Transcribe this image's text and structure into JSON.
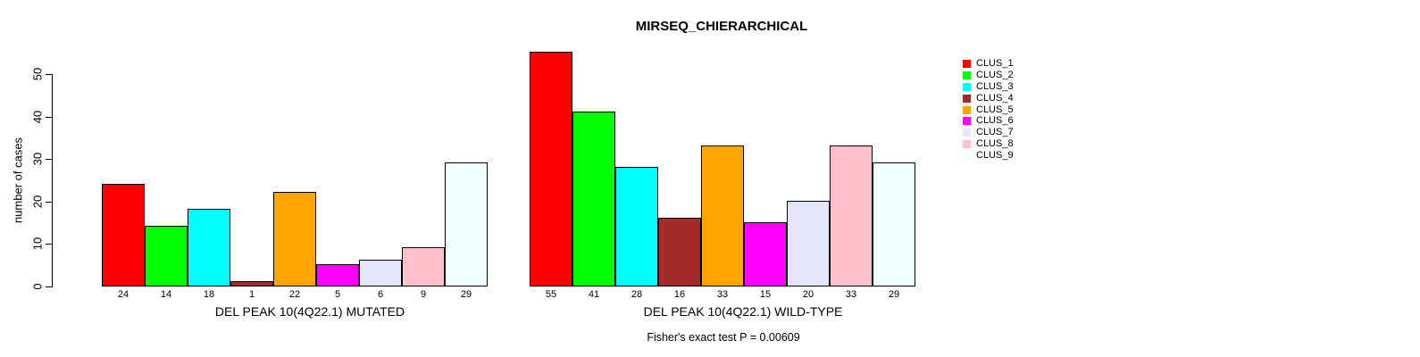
{
  "chart_data": {
    "type": "bar",
    "title": "MIRSEQ_CHIERARCHICAL",
    "ylabel": "number of cases",
    "ylim": [
      0,
      55
    ],
    "yticks": [
      0,
      10,
      20,
      30,
      40,
      50
    ],
    "grid": false,
    "legend_position": "right",
    "legend": [
      "CLUS_1",
      "CLUS_2",
      "CLUS_3",
      "CLUS_4",
      "CLUS_5",
      "CLUS_6",
      "CLUS_7",
      "CLUS_8",
      "CLUS_9"
    ],
    "colors": [
      "#FF0000",
      "#00FF00",
      "#00FFFF",
      "#A52A2A",
      "#FFA500",
      "#FF00FF",
      "#E6E6FA",
      "#FFC0CB",
      "#F0FFFF"
    ],
    "bar_border_color": "#000000",
    "groups": [
      {
        "label": "DEL PEAK 10(4Q22.1) MUTATED",
        "values": [
          24,
          14,
          18,
          1,
          22,
          5,
          6,
          9,
          29
        ]
      },
      {
        "label": "DEL PEAK 10(4Q22.1) WILD-TYPE",
        "values": [
          55,
          41,
          28,
          16,
          33,
          15,
          20,
          33,
          29
        ]
      }
    ],
    "annotation": "Fisher's exact test P = 0.00609"
  }
}
